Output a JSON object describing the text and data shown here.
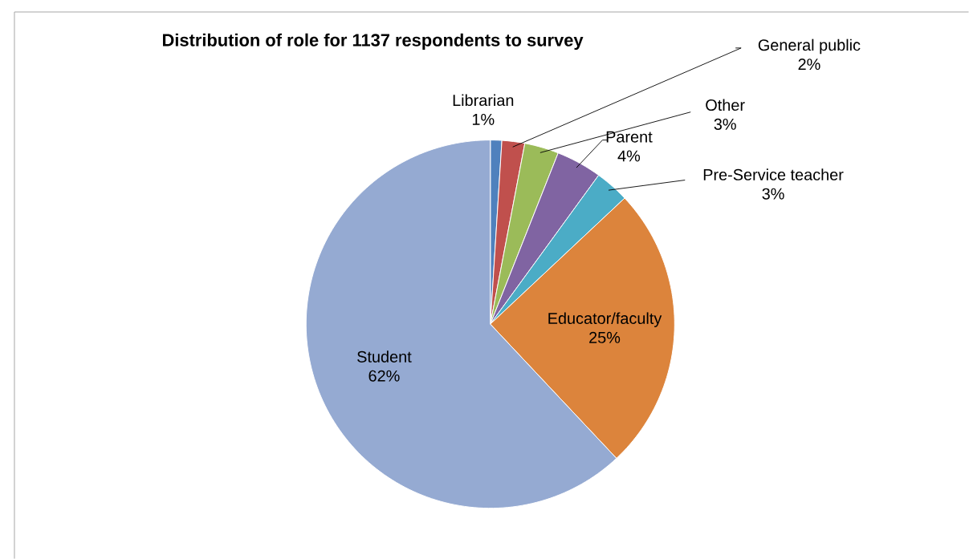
{
  "chart_data": {
    "type": "pie",
    "title": "Distribution of role for 1137 respondents to survey",
    "categories": [
      "Librarian",
      "General public",
      "Other",
      "Parent",
      "Pre-Service teacher",
      "Educator/faculty",
      "Student"
    ],
    "values": [
      1,
      2,
      3,
      4,
      3,
      25,
      62
    ],
    "value_labels": [
      "1%",
      "2%",
      "3%",
      "4%",
      "3%",
      "25%",
      "62%"
    ],
    "colors": [
      "#4f81bd",
      "#c0504d",
      "#9bbb59",
      "#8064a2",
      "#4bacc6",
      "#dc843c",
      "#95aad2"
    ]
  }
}
